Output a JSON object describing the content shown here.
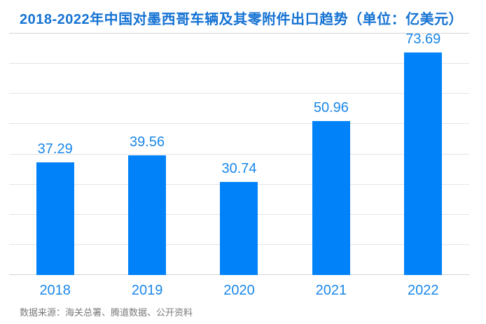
{
  "chart_data": {
    "type": "bar",
    "title": "2018-2022年中国对墨西哥车辆及其零附件出口趋势（单位：亿美元）",
    "categories": [
      "2018",
      "2019",
      "2020",
      "2021",
      "2022"
    ],
    "values": [
      37.29,
      39.56,
      30.74,
      50.96,
      73.69
    ],
    "value_labels": [
      "37.29",
      "39.56",
      "30.74",
      "50.96",
      "73.69"
    ],
    "unit": "亿美元",
    "xlabel": "",
    "ylabel": "",
    "ylim": [
      0,
      80
    ],
    "grid_interval": 10,
    "gridlines": true,
    "y_tick_labels_shown": false,
    "legend": "none",
    "bar_value_labels_shown": true
  },
  "source_note": "数据来源：海关总署、腾道数据、公开资料",
  "colors": {
    "bar": "#0182F9",
    "label": "#1A87E8",
    "title": "#1472D3",
    "grid": "#E4E4E4",
    "axis": "#D4D4D4",
    "source": "#7A7A7A",
    "background": "#FFFFFF"
  }
}
